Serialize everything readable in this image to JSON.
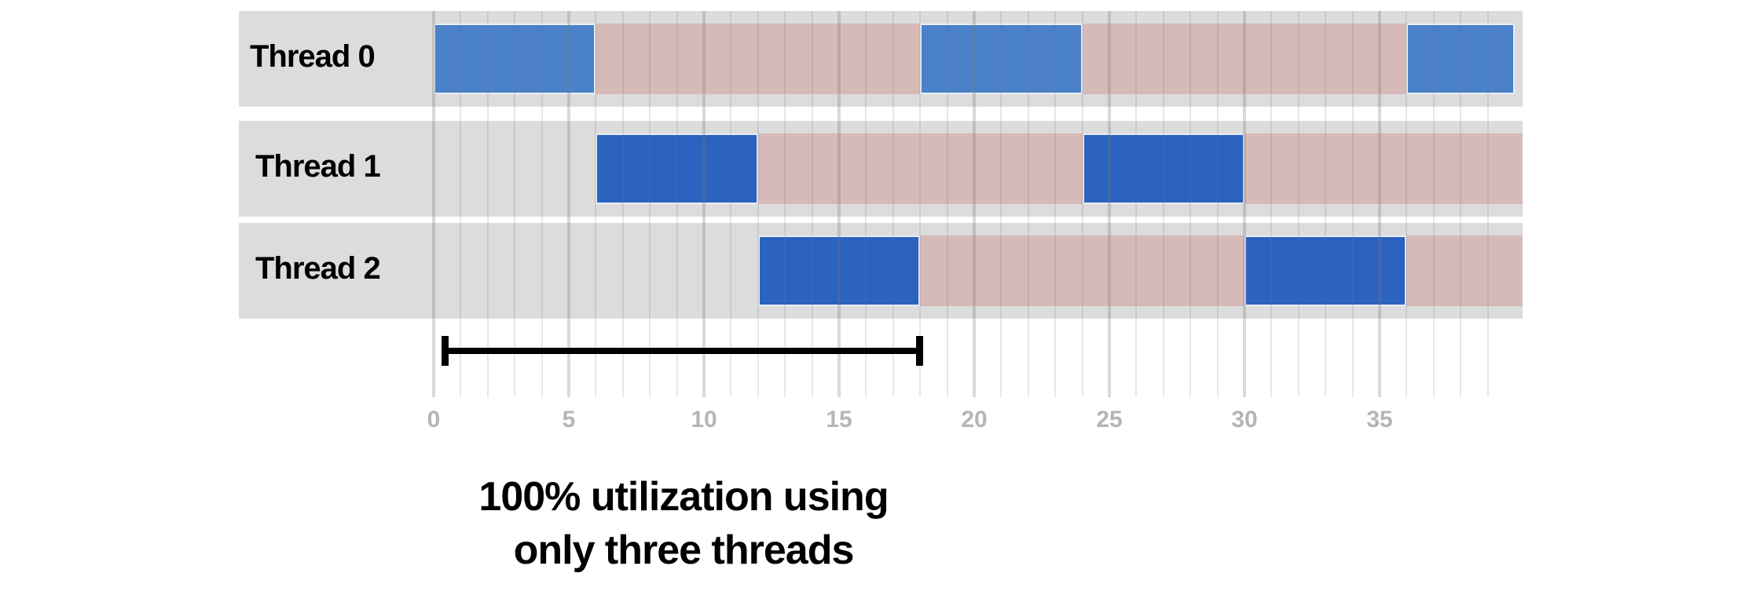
{
  "threads": [
    {
      "label": "Thread 0",
      "segments": [
        {
          "state": "run",
          "start": 0,
          "end": 6
        },
        {
          "state": "stall",
          "start": 6,
          "end": 18
        },
        {
          "state": "run",
          "start": 18,
          "end": 24
        },
        {
          "state": "stall",
          "start": 24,
          "end": 36
        },
        {
          "state": "run",
          "start": 36,
          "end": 40
        }
      ]
    },
    {
      "label": "Thread 1",
      "segments": [
        {
          "state": "run",
          "start": 6,
          "end": 12
        },
        {
          "state": "stall",
          "start": 12,
          "end": 24
        },
        {
          "state": "run",
          "start": 24,
          "end": 30
        },
        {
          "state": "stall",
          "start": 30,
          "end": 40.3
        }
      ]
    },
    {
      "label": "Thread 2",
      "segments": [
        {
          "state": "run",
          "start": 12,
          "end": 18
        },
        {
          "state": "stall",
          "start": 18,
          "end": 30
        },
        {
          "state": "run",
          "start": 30,
          "end": 36
        },
        {
          "state": "stall",
          "start": 36,
          "end": 40.3
        }
      ]
    }
  ],
  "axis": {
    "ticks": [
      "0",
      "5",
      "10",
      "15",
      "20",
      "25",
      "30",
      "35"
    ],
    "min": 0,
    "max": 39
  },
  "bracket": {
    "start": 0.4,
    "end": 18
  },
  "caption": {
    "line1": "100% utilization using",
    "line2": "only three threads"
  },
  "colors": {
    "run": "#2b63bf",
    "run_thread0": "#4a81c8",
    "stall": "#d5b6b3",
    "row_background": "#dcdcdd",
    "tick_label": "#b5b5b5"
  }
}
